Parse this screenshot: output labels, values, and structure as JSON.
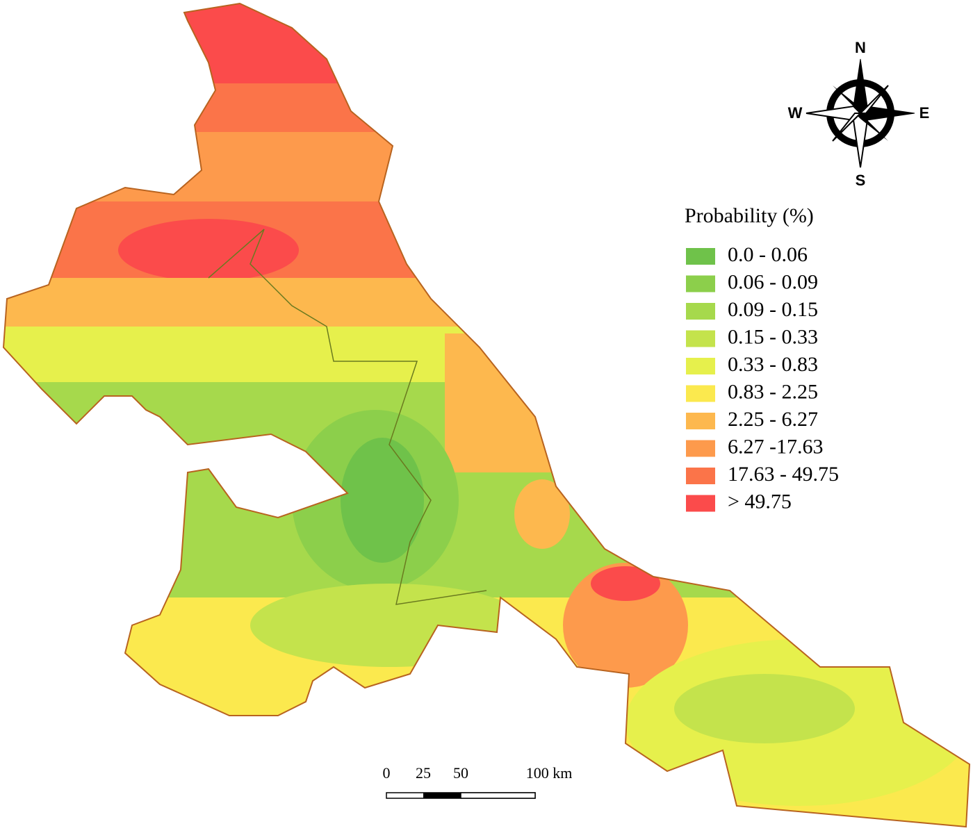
{
  "compass": {
    "north": "N",
    "east": "E",
    "south": "S",
    "west": "W"
  },
  "legend": {
    "title": "Probability (%)",
    "items": [
      {
        "label": "0.0 - 0.06",
        "color": "#6fc24a"
      },
      {
        "label": "0.06 - 0.09",
        "color": "#8ccf4b"
      },
      {
        "label": "0.09 - 0.15",
        "color": "#a6d94c"
      },
      {
        "label": "0.15 - 0.33",
        "color": "#c4e34c"
      },
      {
        "label": "0.33 - 0.83",
        "color": "#e6f04c"
      },
      {
        "label": "0.83 - 2.25",
        "color": "#fbe94e"
      },
      {
        "label": "2.25 - 6.27",
        "color": "#fdb84e"
      },
      {
        "label": "6.27 -17.63",
        "color": "#fd9a4c"
      },
      {
        "label": "17.63 - 49.75",
        "color": "#fb7449"
      },
      {
        "label": "> 49.75",
        "color": "#fb4b4b"
      }
    ]
  },
  "scale_bar": {
    "labels": [
      "0",
      "25",
      "50",
      "100 km"
    ]
  }
}
